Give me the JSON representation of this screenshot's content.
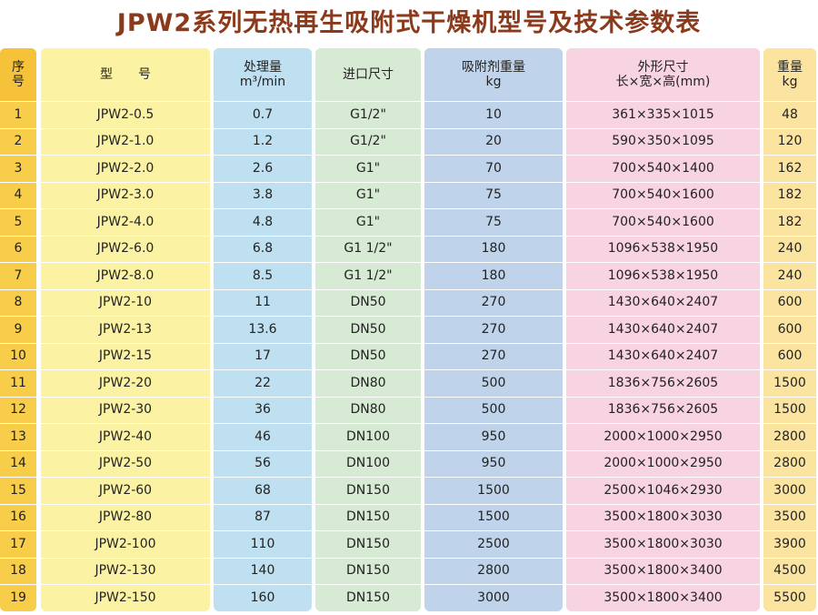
{
  "title": "JPW2系列无热再生吸附式干燥机型号及技术参数表",
  "columns": [
    {
      "key": "no",
      "header": [
        "序",
        "号"
      ],
      "bg": "#f7cd4a",
      "header_bg": "#f5c23a"
    },
    {
      "key": "model",
      "header": [
        "型　　号"
      ],
      "bg": "#fbf3a3",
      "header_bg": "#fbf3a3"
    },
    {
      "key": "flow",
      "header": [
        "处理量",
        "m³/min"
      ],
      "bg": "#bfe0f0",
      "header_bg": "#bfe0f0"
    },
    {
      "key": "inlet",
      "header": [
        "进口尺寸"
      ],
      "bg": "#d7ead4",
      "header_bg": "#d7ead4"
    },
    {
      "key": "adsorbent",
      "header": [
        "吸附剂重量",
        "kg"
      ],
      "bg": "#bfd4ea",
      "header_bg": "#bfd4ea"
    },
    {
      "key": "dims",
      "header": [
        "外形尺寸",
        "长×宽×高(mm)"
      ],
      "bg": "#f8d3e2",
      "header_bg": "#f8d3e2"
    },
    {
      "key": "weight",
      "header": [
        "重量",
        "kg"
      ],
      "bg": "#fbe3a0",
      "header_bg": "#fbe3a0"
    }
  ],
  "rows": [
    {
      "no": "1",
      "model": "JPW2-0.5",
      "flow": "0.7",
      "inlet": "G1/2\"",
      "adsorbent": "10",
      "dims": "361×335×1015",
      "weight": "48"
    },
    {
      "no": "2",
      "model": "JPW2-1.0",
      "flow": "1.2",
      "inlet": "G1/2\"",
      "adsorbent": "20",
      "dims": "590×350×1095",
      "weight": "120"
    },
    {
      "no": "3",
      "model": "JPW2-2.0",
      "flow": "2.6",
      "inlet": "G1\"",
      "adsorbent": "70",
      "dims": "700×540×1400",
      "weight": "162"
    },
    {
      "no": "4",
      "model": "JPW2-3.0",
      "flow": "3.8",
      "inlet": "G1\"",
      "adsorbent": "75",
      "dims": "700×540×1600",
      "weight": "182"
    },
    {
      "no": "5",
      "model": "JPW2-4.0",
      "flow": "4.8",
      "inlet": "G1\"",
      "adsorbent": "75",
      "dims": "700×540×1600",
      "weight": "182"
    },
    {
      "no": "6",
      "model": "JPW2-6.0",
      "flow": "6.8",
      "inlet": "G1 1/2\"",
      "adsorbent": "180",
      "dims": "1096×538×1950",
      "weight": "240"
    },
    {
      "no": "7",
      "model": "JPW2-8.0",
      "flow": "8.5",
      "inlet": "G1 1/2\"",
      "adsorbent": "180",
      "dims": "1096×538×1950",
      "weight": "240"
    },
    {
      "no": "8",
      "model": "JPW2-10",
      "flow": "11",
      "inlet": "DN50",
      "adsorbent": "270",
      "dims": "1430×640×2407",
      "weight": "600"
    },
    {
      "no": "9",
      "model": "JPW2-13",
      "flow": "13.6",
      "inlet": "DN50",
      "adsorbent": "270",
      "dims": "1430×640×2407",
      "weight": "600"
    },
    {
      "no": "10",
      "model": "JPW2-15",
      "flow": "17",
      "inlet": "DN50",
      "adsorbent": "270",
      "dims": "1430×640×2407",
      "weight": "600"
    },
    {
      "no": "11",
      "model": "JPW2-20",
      "flow": "22",
      "inlet": "DN80",
      "adsorbent": "500",
      "dims": "1836×756×2605",
      "weight": "1500"
    },
    {
      "no": "12",
      "model": "JPW2-30",
      "flow": "36",
      "inlet": "DN80",
      "adsorbent": "500",
      "dims": "1836×756×2605",
      "weight": "1500"
    },
    {
      "no": "13",
      "model": "JPW2-40",
      "flow": "46",
      "inlet": "DN100",
      "adsorbent": "950",
      "dims": "2000×1000×2950",
      "weight": "2800"
    },
    {
      "no": "14",
      "model": "JPW2-50",
      "flow": "56",
      "inlet": "DN100",
      "adsorbent": "950",
      "dims": "2000×1000×2950",
      "weight": "2800"
    },
    {
      "no": "15",
      "model": "JPW2-60",
      "flow": "68",
      "inlet": "DN150",
      "adsorbent": "1500",
      "dims": "2500×1046×2930",
      "weight": "3000"
    },
    {
      "no": "16",
      "model": "JPW2-80",
      "flow": "87",
      "inlet": "DN150",
      "adsorbent": "1500",
      "dims": "3500×1800×3030",
      "weight": "3500"
    },
    {
      "no": "17",
      "model": "JPW2-100",
      "flow": "110",
      "inlet": "DN150",
      "adsorbent": "2500",
      "dims": "3500×1800×3030",
      "weight": "3900"
    },
    {
      "no": "18",
      "model": "JPW2-130",
      "flow": "140",
      "inlet": "DN150",
      "adsorbent": "2800",
      "dims": "3500×1800×3400",
      "weight": "4500"
    },
    {
      "no": "19",
      "model": "JPW2-150",
      "flow": "160",
      "inlet": "DN150",
      "adsorbent": "3000",
      "dims": "3500×1800×3400",
      "weight": "5500"
    }
  ]
}
